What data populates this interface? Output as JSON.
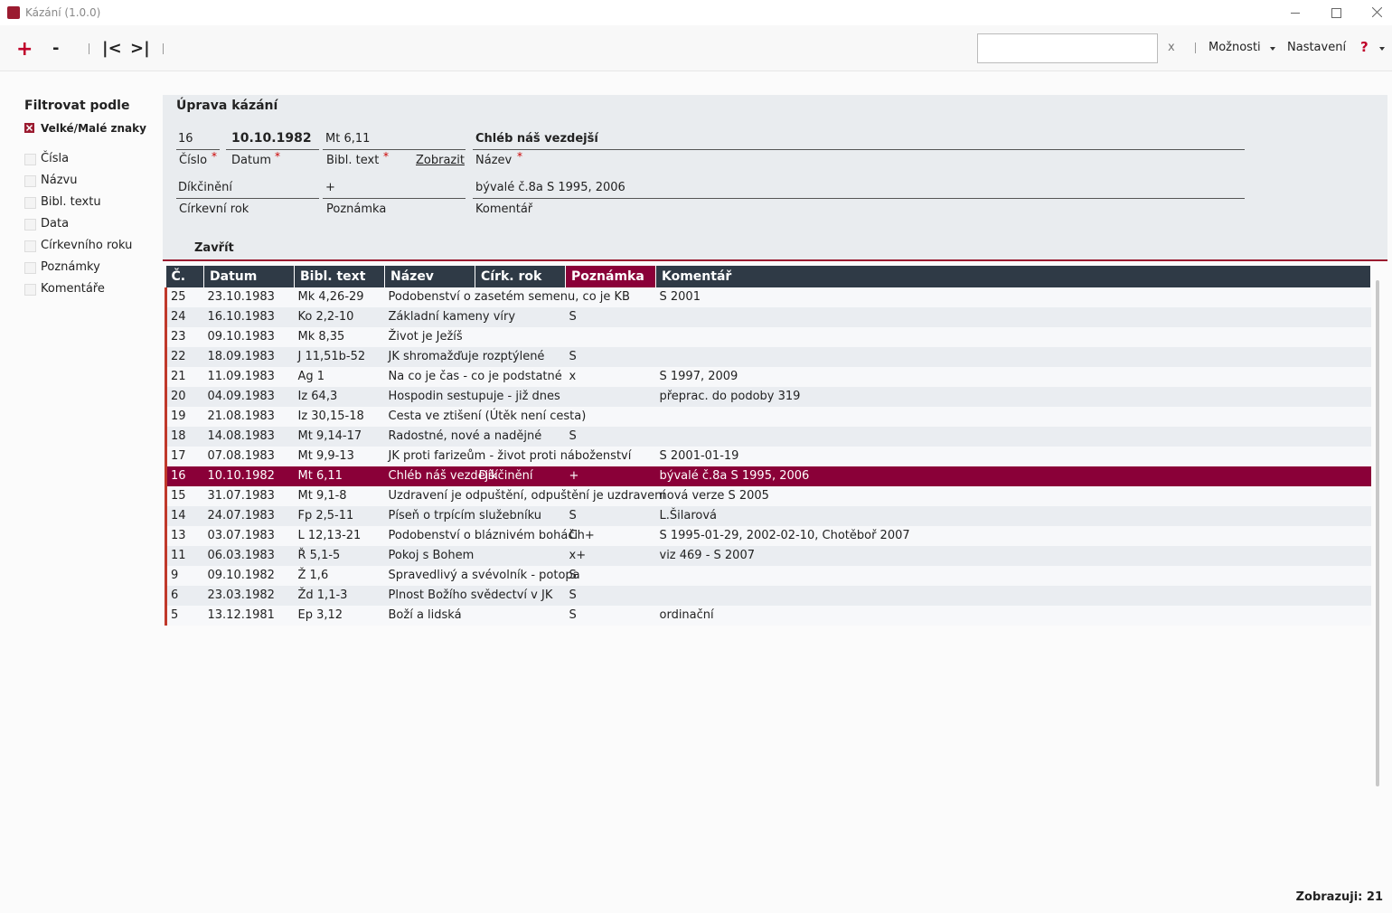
{
  "window": {
    "title": "Kázání (1.0.0)"
  },
  "toolbar": {
    "add": "+",
    "remove": "-",
    "first": "|<",
    "last": ">|",
    "search_clear": "x",
    "options": "Možnosti",
    "settings": "Nastavení",
    "help": "?"
  },
  "sidebar": {
    "title": "Filtrovat podle",
    "case_toggle": "Velké/Malé znaky",
    "filters": [
      "Čísla",
      "Názvu",
      "Bibl. textu",
      "Data",
      "Církevního roku",
      "Poznámky",
      "Komentáře"
    ]
  },
  "form": {
    "title": "Úprava kázání",
    "required_mark": "*",
    "number": "16",
    "date": "10.10.1982",
    "bible_text": "Mt 6,11",
    "name": "Chléb náš vezdejší",
    "number_label": "Číslo",
    "date_label": "Datum",
    "bible_label": "Bibl. text",
    "show_link": "Zobrazit",
    "name_label": "Název",
    "church_year": "Díkčinění",
    "note": "+",
    "comment": "bývalé č.8a S 1995, 2006",
    "church_year_label": "Církevní rok",
    "note_label": "Poznámka",
    "comment_label": "Komentář",
    "close": "Zavřít"
  },
  "table": {
    "columns": [
      "Č.",
      "Datum",
      "Bibl. text",
      "Název",
      "Círk. rok",
      "Poznámka",
      "Komentář"
    ],
    "selected_row": 9,
    "rows": [
      [
        "25",
        "23.10.1983",
        "Mk 4,26-29",
        "Podobenství o zasetém semenu, co je KB",
        null,
        null,
        "S 2001"
      ],
      [
        "24",
        "16.10.1983",
        "Ko 2,2-10",
        "Základní kameny víry",
        null,
        "S",
        null
      ],
      [
        "23",
        "09.10.1983",
        "Mk 8,35",
        "Život je Ježíš",
        null,
        null,
        null
      ],
      [
        "22",
        "18.09.1983",
        "J 11,51b-52",
        "JK shromažďuje rozptýlené",
        null,
        "S",
        null
      ],
      [
        "21",
        "11.09.1983",
        "Ag 1",
        "Na co je čas - co je podstatné",
        null,
        "x",
        "S 1997, 2009"
      ],
      [
        "20",
        "04.09.1983",
        "Iz 64,3",
        "Hospodin sestupuje - již dnes",
        null,
        null,
        "přeprac. do podoby 319"
      ],
      [
        "19",
        "21.08.1983",
        "Iz 30,15-18",
        "Cesta ve ztišení (Útěk není cesta)",
        null,
        null,
        null
      ],
      [
        "18",
        "14.08.1983",
        "Mt 9,14-17",
        "Radostné, nové a nadějné",
        null,
        "S",
        null
      ],
      [
        "17",
        "07.08.1983",
        "Mt 9,9-13",
        "JK proti farizeům - život proti náboženství",
        null,
        null,
        "S 2001-01-19"
      ],
      [
        "16",
        "10.10.1982",
        "Mt 6,11",
        "Chléb náš vezdejší",
        "Díkčinění",
        "+",
        "bývalé č.8a S 1995, 2006"
      ],
      [
        "15",
        "31.07.1983",
        "Mt 9,1-8",
        "Uzdravení je odpuštění, odpuštění je uzdravení",
        null,
        null,
        "nová verze S 2005"
      ],
      [
        "14",
        "24.07.1983",
        "Fp 2,5-11",
        "Píseň o trpícím služebníku",
        null,
        "S",
        "L.Šilarová"
      ],
      [
        "13",
        "03.07.1983",
        "L 12,13-21",
        "Podobenství o bláznivém boháči",
        null,
        "Ch+",
        "S 1995-01-29, 2002-02-10, Chotěboř 2007"
      ],
      [
        "11",
        "06.03.1983",
        "Ř 5,1-5",
        "Pokoj s Bohem",
        null,
        "x+",
        "viz 469 - S 2007"
      ],
      [
        "9",
        "09.10.1982",
        "Ž 1,6",
        "Spravedlivý a svévolník - potopa",
        null,
        "S",
        null
      ],
      [
        "6",
        "23.03.1982",
        "Žd 1,1-3",
        "Plnost Božího svědectví v JK",
        null,
        "S",
        null
      ],
      [
        "5",
        "13.12.1981",
        "Ep 3,12",
        "Boží a lidská",
        null,
        "S",
        "ordinační"
      ]
    ]
  },
  "status": "Zobrazuji: 21"
}
